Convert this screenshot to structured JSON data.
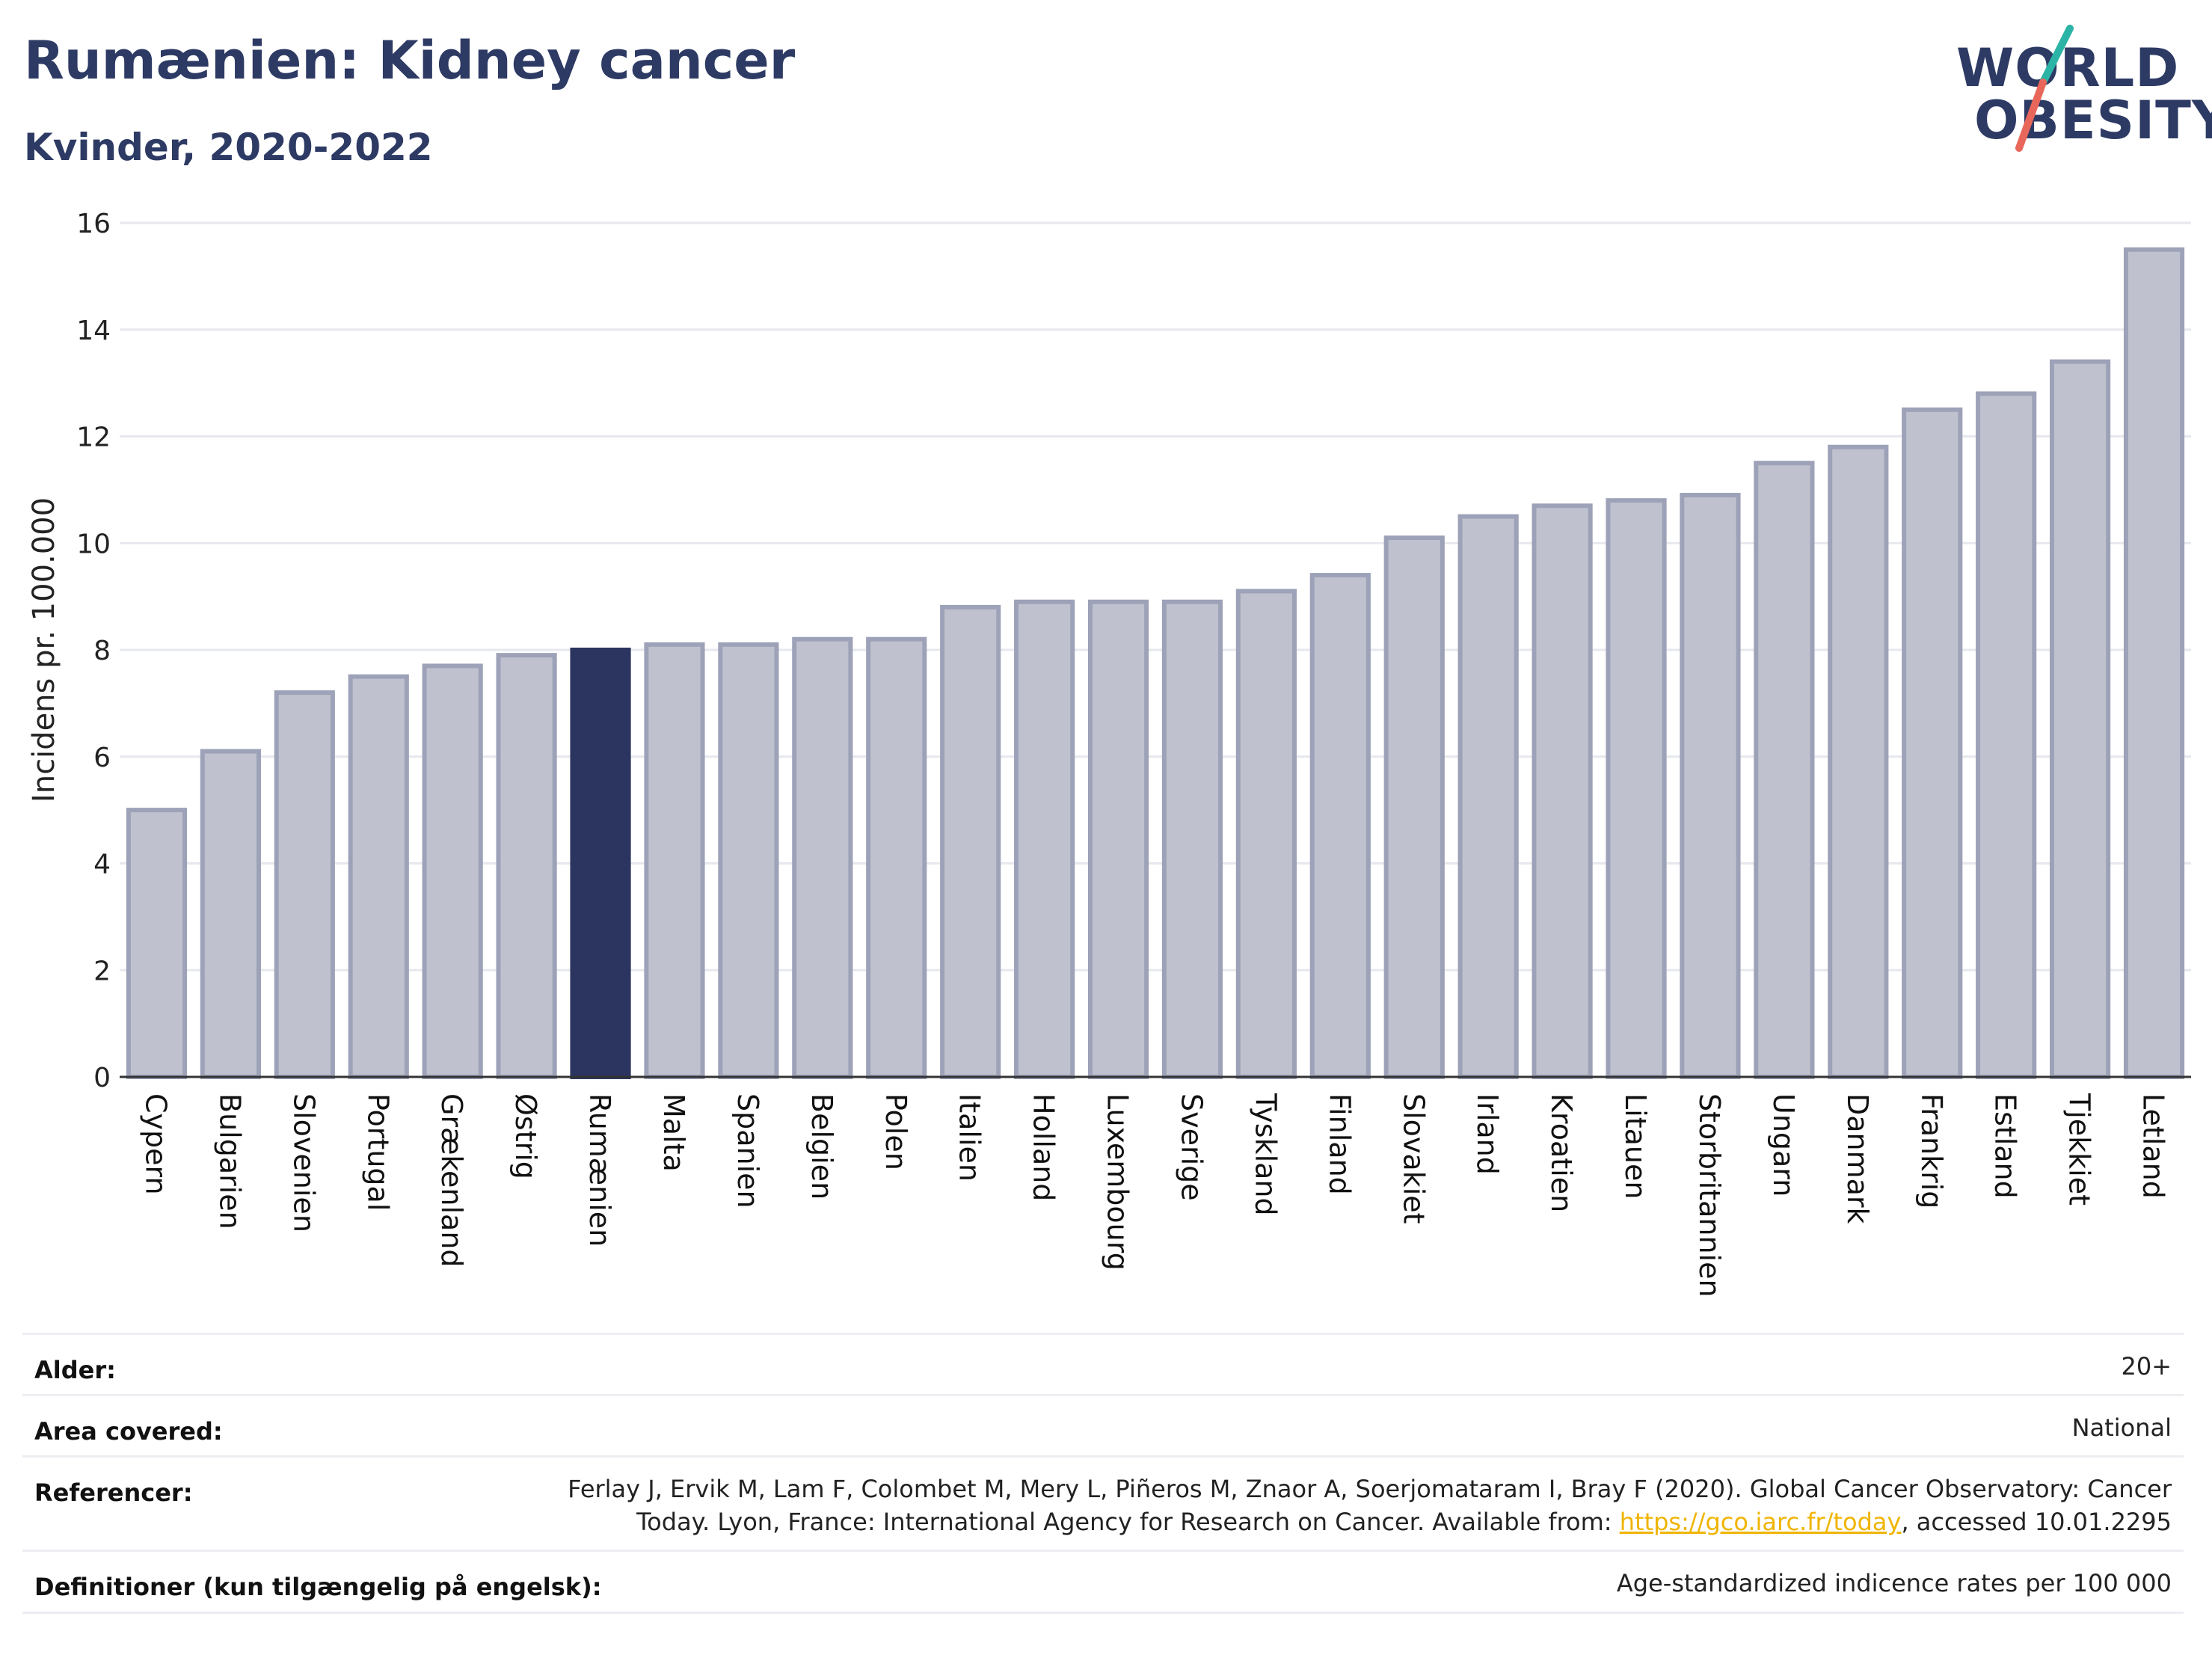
{
  "header": {
    "title": "Rumænien: Kidney cancer",
    "subtitle": "Kvinder, 2020-2022"
  },
  "logo": {
    "line1": "WORLD",
    "line2": "OBESITY",
    "accent_teal": "#2bb3a6",
    "accent_red": "#e8675a"
  },
  "colors": {
    "bar": "#bfc2ce",
    "bar_stroke": "#9da2b8",
    "highlight": "#2b3560",
    "grid": "#e6e8ee",
    "axis": "#333333"
  },
  "chart_data": {
    "type": "bar",
    "ylabel": "Incidens pr. 100.000",
    "ylim": [
      0,
      16
    ],
    "yticks": [
      0,
      2,
      4,
      6,
      8,
      10,
      12,
      14,
      16
    ],
    "highlight": "Rumænien",
    "categories": [
      "Cypern",
      "Bulgarien",
      "Slovenien",
      "Portugal",
      "Grækenland",
      "Østrig",
      "Rumænien",
      "Malta",
      "Spanien",
      "Belgien",
      "Polen",
      "Italien",
      "Holland",
      "Luxembourg",
      "Sverige",
      "Tyskland",
      "Finland",
      "Slovakiet",
      "Irland",
      "Kroatien",
      "Litauen",
      "Storbritannien",
      "Ungarn",
      "Danmark",
      "Frankrig",
      "Estland",
      "Tjekkiet",
      "Letland"
    ],
    "values": [
      5.0,
      6.1,
      7.2,
      7.5,
      7.7,
      7.9,
      8.0,
      8.1,
      8.1,
      8.2,
      8.2,
      8.8,
      8.9,
      8.9,
      8.9,
      9.1,
      9.4,
      10.1,
      10.5,
      10.7,
      10.8,
      10.9,
      11.5,
      11.8,
      12.5,
      12.8,
      13.4,
      15.5
    ],
    "grid": true
  },
  "meta": {
    "age_label": "Alder:",
    "age_value": "20+",
    "area_label": "Area covered:",
    "area_value": "National",
    "ref_label": "Referencer:",
    "ref_line1": "Ferlay J, Ervik M, Lam F, Colombet M, Mery L, Piñeros M, Znaor A, Soerjomataram I, Bray F (2020). Global Cancer Observatory: Cancer",
    "ref_line2_pre": "Today. Lyon, France: International Agency for Research on Cancer. Available from: ",
    "ref_link": "https://gco.iarc.fr/today",
    "ref_line2_post": ", accessed 10.01.2295",
    "def_label": "Definitioner (kun tilgængelig på engelsk):",
    "def_value": "Age-standardized indicence rates per 100 000"
  }
}
